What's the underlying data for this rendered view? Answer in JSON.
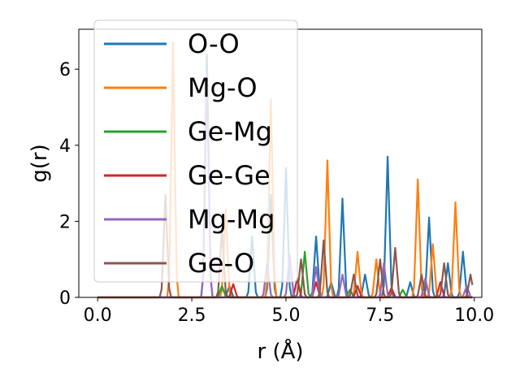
{
  "chart_data": {
    "type": "line",
    "title": "",
    "xlabel": "r (Å)",
    "ylabel": "g(r)",
    "xlim": [
      -0.5,
      10.2
    ],
    "ylim": [
      0,
      7.05
    ],
    "xticks": [
      0.0,
      2.5,
      5.0,
      7.5,
      10.0
    ],
    "xtick_labels": [
      "0.0",
      "2.5",
      "5.0",
      "7.5",
      "10.0"
    ],
    "yticks": [
      0,
      2,
      4,
      6
    ],
    "ytick_labels": [
      "0",
      "2",
      "4",
      "6"
    ],
    "grid": false,
    "legend_position": "top-left",
    "series": [
      {
        "name": "O-O",
        "color": "#1f77b4",
        "peaks": [
          [
            2.9,
            6.4
          ],
          [
            3.5,
            0.3
          ],
          [
            4.1,
            1.6
          ],
          [
            4.6,
            2.7
          ],
          [
            5.0,
            3.4
          ],
          [
            5.3,
            0.5
          ],
          [
            5.8,
            1.6
          ],
          [
            6.2,
            0.4
          ],
          [
            6.5,
            2.6
          ],
          [
            7.1,
            0.6
          ],
          [
            7.7,
            3.7
          ],
          [
            8.3,
            0.4
          ],
          [
            8.8,
            2.1
          ],
          [
            9.3,
            0.9
          ],
          [
            9.7,
            1.2
          ]
        ]
      },
      {
        "name": "Mg-O",
        "color": "#ff7f0e",
        "peaks": [
          [
            2.0,
            6.7
          ],
          [
            3.4,
            2.3
          ],
          [
            4.6,
            5.2
          ],
          [
            6.1,
            3.6
          ],
          [
            6.9,
            1.2
          ],
          [
            7.4,
            1.0
          ],
          [
            8.5,
            3.1
          ],
          [
            8.9,
            1.4
          ],
          [
            9.5,
            2.5
          ]
        ]
      },
      {
        "name": "Ge-Mg",
        "color": "#2ca02c",
        "peaks": [
          [
            3.3,
            0.3
          ],
          [
            5.5,
            1.2
          ],
          [
            6.7,
            0.2
          ],
          [
            8.1,
            0.2
          ]
        ]
      },
      {
        "name": "Ge-Ge",
        "color": "#d62728",
        "peaks": [
          [
            3.6,
            0.35
          ],
          [
            5.3,
            0.5
          ],
          [
            5.8,
            0.4
          ],
          [
            6.9,
            0.3
          ],
          [
            7.8,
            0.25
          ],
          [
            9.1,
            0.4
          ]
        ]
      },
      {
        "name": "Mg-Mg",
        "color": "#9467bd",
        "peaks": [
          [
            2.9,
            6.0
          ],
          [
            4.5,
            0.9
          ],
          [
            5.1,
            1.1
          ],
          [
            5.8,
            0.8
          ],
          [
            6.5,
            0.6
          ],
          [
            7.6,
            0.9
          ],
          [
            8.7,
            0.5
          ],
          [
            9.8,
            0.3
          ]
        ]
      },
      {
        "name": "Ge-O",
        "color": "#8c564b",
        "peaks": [
          [
            1.8,
            2.7
          ],
          [
            3.3,
            1.8
          ],
          [
            5.4,
            1.0
          ],
          [
            6.0,
            1.5
          ],
          [
            6.8,
            0.6
          ],
          [
            7.5,
            1.0
          ],
          [
            7.9,
            1.3
          ],
          [
            8.6,
            0.6
          ],
          [
            9.2,
            0.9
          ],
          [
            9.9,
            0.6
          ]
        ]
      }
    ]
  }
}
